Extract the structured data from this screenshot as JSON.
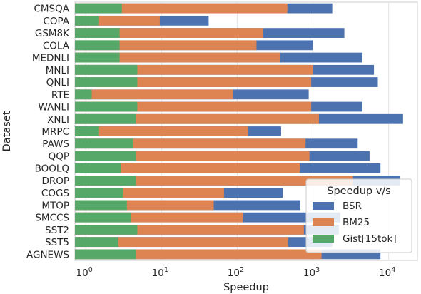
{
  "chart_data": {
    "type": "bar",
    "orientation": "horizontal",
    "xscale": "log",
    "xlim": [
      0.72,
      24000
    ],
    "xlabel": "Speedup",
    "ylabel": "Dataset",
    "xticks": [
      1,
      10,
      100,
      1000,
      10000
    ],
    "xtick_labels": [
      {
        "base": "10",
        "exp": "0"
      },
      {
        "base": "10",
        "exp": "1"
      },
      {
        "base": "10",
        "exp": "2"
      },
      {
        "base": "10",
        "exp": "3"
      },
      {
        "base": "10",
        "exp": "4"
      }
    ],
    "grid": true,
    "legend_position": "lower-right",
    "categories": [
      "CMSQA",
      "COPA",
      "GSM8K",
      "COLA",
      "MEDNLI",
      "MNLI",
      "QNLI",
      "RTE",
      "WANLI",
      "XNLI",
      "MRPC",
      "PAWS",
      "QQP",
      "BOOLQ",
      "DROP",
      "COGS",
      "MTOP",
      "SMCCS",
      "SST2",
      "SST5",
      "AGNEWS"
    ],
    "series": [
      {
        "name": "BSR",
        "color": "#4c72b0",
        "values": [
          1800,
          42,
          2600,
          1000,
          4500,
          6400,
          7200,
          880,
          4500,
          15500,
          380,
          3900,
          5600,
          7800,
          14000,
          400,
          680,
          2300,
          2200,
          1800,
          7800
        ]
      },
      {
        "name": "BM25",
        "color": "#dd8452",
        "values": [
          460,
          9.5,
          220,
          180,
          370,
          1000,
          950,
          88,
          950,
          1200,
          140,
          800,
          900,
          670,
          3400,
          67,
          49,
          120,
          760,
          470,
          1300
        ]
      },
      {
        "name": "Gist[15tok]",
        "color": "#55a868",
        "values": [
          3.0,
          1.5,
          2.8,
          2.8,
          2.8,
          4.8,
          4.8,
          1.2,
          4.8,
          4.6,
          1.5,
          4.2,
          4.6,
          2.9,
          4.6,
          3.1,
          3.5,
          4.0,
          4.8,
          2.7,
          4.6
        ]
      }
    ],
    "legend": {
      "title": "Speedup v/s",
      "order": [
        "BSR",
        "BM25",
        "Gist[15tok]"
      ]
    }
  }
}
